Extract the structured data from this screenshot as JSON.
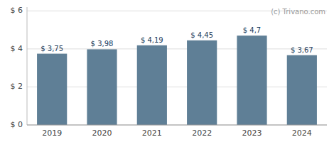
{
  "chart_data": {
    "type": "bar",
    "categories": [
      "2019",
      "2020",
      "2021",
      "2022",
      "2023",
      "2024"
    ],
    "values": [
      3.75,
      3.98,
      4.19,
      4.45,
      4.7,
      3.67
    ],
    "value_labels": [
      "$ 3,75",
      "$ 3,98",
      "$ 4,19",
      "$ 4,45",
      "$ 4,7",
      "$ 3,67"
    ],
    "data_labels": true,
    "color": "#5f7f96",
    "ylim": [
      0,
      6.2
    ],
    "yticks": [
      {
        "value": 0,
        "label": "$ 0"
      },
      {
        "value": 2,
        "label": "$ 2"
      },
      {
        "value": 4,
        "label": "$ 4"
      },
      {
        "value": 6,
        "label": "$ 6"
      }
    ],
    "grid": true,
    "annotations": [
      "(c) Trivano.com"
    ]
  }
}
